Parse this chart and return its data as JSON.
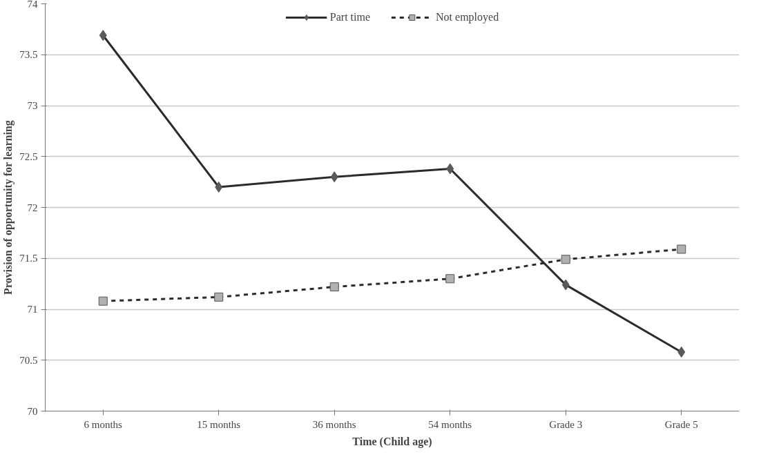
{
  "chart_data": {
    "type": "line",
    "xlabel": "Time (Child age)",
    "ylabel": "Provision of opportunity for learning",
    "categories": [
      "6 months",
      "15 months",
      "36 months",
      "54 months",
      "Grade 3",
      "Grade 5"
    ],
    "series": [
      {
        "name": "Part time",
        "color": "#2b2b2b",
        "colors": [
          "#5a5a5a",
          "#5a5a5a",
          "#5a5a5a",
          "#5a5a5a",
          "#5a5a5a",
          "#5a5a5a"
        ],
        "values": [
          73.69,
          72.2,
          72.3,
          72.38,
          71.24,
          70.58
        ],
        "marker": "diamond",
        "line_style": "solid"
      },
      {
        "name": "Not employed",
        "color": "#2b2b2b",
        "colors": [
          "#b0b0b0",
          "#b0b0b0",
          "#b0b0b0",
          "#b0b0b0",
          "#b0b0b0",
          "#b0b0b0"
        ],
        "values": [
          71.08,
          71.12,
          71.22,
          71.3,
          71.49,
          71.59
        ],
        "marker": "square",
        "line_style": "dashed"
      }
    ],
    "ylim": [
      70,
      74
    ],
    "yticks": [
      70,
      70.5,
      71,
      71.5,
      72,
      72.5,
      73,
      73.5,
      74
    ],
    "grid": "y",
    "legend": "top"
  }
}
